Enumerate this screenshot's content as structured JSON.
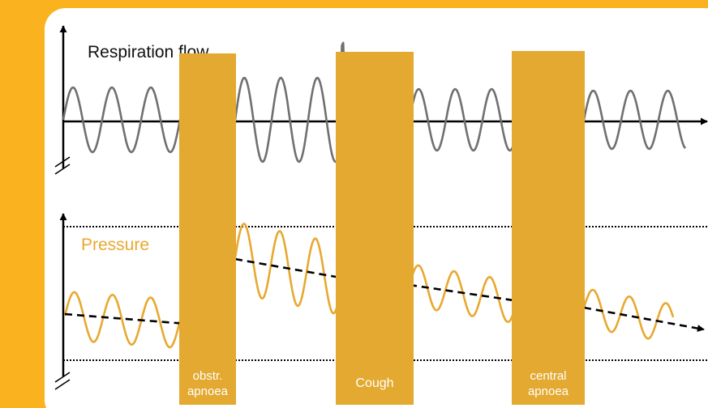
{
  "colors": {
    "background": "#FBB21F",
    "panel": "#FFFFFF",
    "event_bar": "#E3A930",
    "flow_line": "#707070",
    "pressure_line": "#E7A930",
    "axis": "#000000",
    "event_label": "#FFFFFF"
  },
  "top_plot": {
    "title": "Respiration flow"
  },
  "bottom_plot": {
    "title": "Pressure"
  },
  "events": [
    {
      "label_line1": "obstr.",
      "label_line2": "apnoea"
    },
    {
      "label_line1": "Cough",
      "label_line2": ""
    },
    {
      "label_line1": "central",
      "label_line2": "apnoea"
    }
  ]
}
